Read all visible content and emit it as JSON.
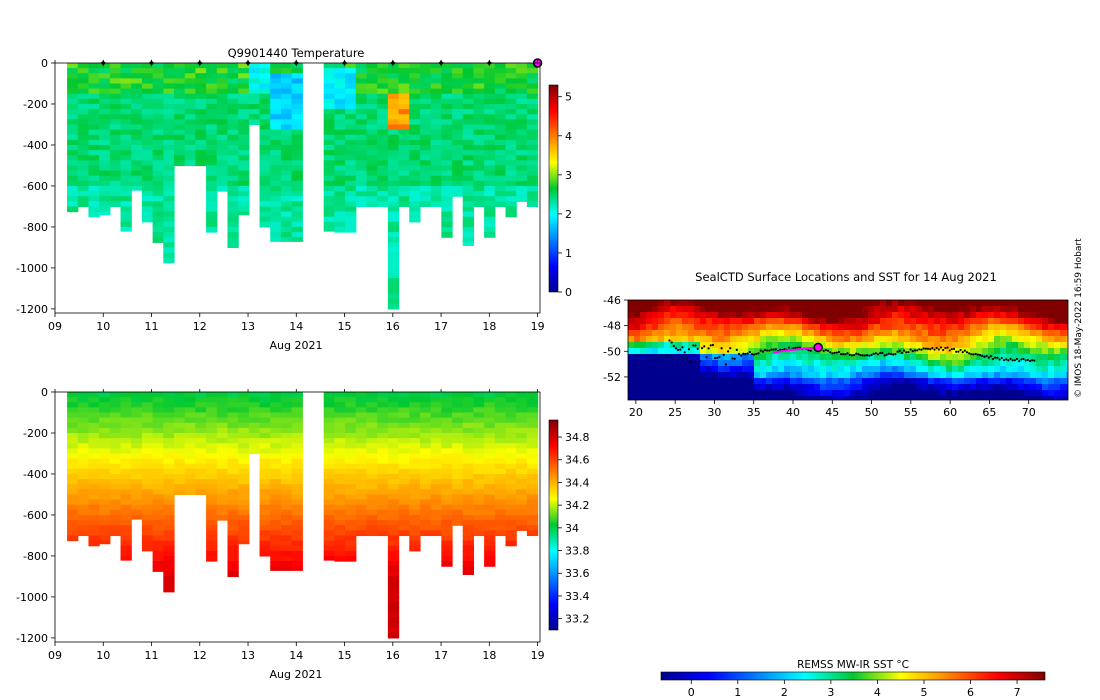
{
  "figure": {
    "watermark": "© IMOS 18-May-2022 16:59 Hobart"
  },
  "chart_data": [
    {
      "id": "temperature_section",
      "type": "heatmap",
      "title": "Q9901440  Temperature",
      "xlabel": "Aug 2021",
      "ylabel": "",
      "x_ticks": [
        "09",
        "10",
        "11",
        "12",
        "13",
        "14",
        "15",
        "16",
        "17",
        "18",
        "19"
      ],
      "x_range": [
        9,
        19.05
      ],
      "y_ticks": [
        0,
        -200,
        -400,
        -600,
        -800,
        -1000,
        -1200
      ],
      "y_range": [
        -1220,
        0
      ],
      "colorbar": {
        "min": 0,
        "max": 5.3,
        "ticks": [
          0,
          1,
          2,
          3,
          4,
          5
        ]
      },
      "surface_markers_day": [
        10,
        11,
        12,
        13,
        14,
        15,
        16,
        17,
        18
      ],
      "current_profile_day": 19.0,
      "profile_depths_m": [
        730,
        700,
        750,
        740,
        700,
        820,
        620,
        780,
        880,
        980,
        510,
        510,
        500,
        830,
        630,
        910,
        740,
        300,
        800,
        870,
        870,
        870,
        0,
        0,
        820,
        830,
        830,
        700,
        700,
        700,
        1200,
        700,
        780,
        700,
        700,
        850,
        650,
        890,
        700,
        850,
        700,
        760,
        680,
        700
      ]
    },
    {
      "id": "salinity_section",
      "type": "heatmap",
      "title": "",
      "xlabel": "Aug 2021",
      "ylabel": "",
      "x_ticks": [
        "09",
        "10",
        "11",
        "12",
        "13",
        "14",
        "15",
        "16",
        "17",
        "18",
        "19"
      ],
      "x_range": [
        9,
        19.05
      ],
      "y_ticks": [
        0,
        -200,
        -400,
        -600,
        -800,
        -1000,
        -1200
      ],
      "y_range": [
        -1220,
        0
      ],
      "colorbar": {
        "min": 33.1,
        "max": 34.95,
        "ticks": [
          33.2,
          33.4,
          33.6,
          33.8,
          34,
          34.2,
          34.4,
          34.6,
          34.8
        ]
      }
    },
    {
      "id": "surface_map",
      "type": "heatmap",
      "title": "SealCTD Surface Locations and SST for 14 Aug 2021",
      "xlabel": "",
      "ylabel": "",
      "x_ticks": [
        20,
        25,
        30,
        35,
        40,
        45,
        50,
        55,
        60,
        65,
        70
      ],
      "x_range": [
        19,
        75
      ],
      "y_ticks": [
        -46,
        -48,
        -50,
        -52
      ],
      "y_range": [
        -53.8,
        -46
      ],
      "current_position": {
        "lon": 43.2,
        "lat": -49.7
      },
      "track_segment_highlight": [
        [
          37.5,
          -50.1
        ],
        [
          39,
          -49.95
        ],
        [
          40.5,
          -49.85
        ],
        [
          42,
          -49.75
        ],
        [
          43.2,
          -49.7
        ]
      ]
    },
    {
      "id": "sst_colorbar",
      "type": "heatmap",
      "title": "REMSS MW-IR SST °C",
      "x_ticks": [
        0,
        1,
        2,
        3,
        4,
        5,
        6,
        7
      ],
      "range": [
        -0.65,
        7.6
      ]
    }
  ]
}
